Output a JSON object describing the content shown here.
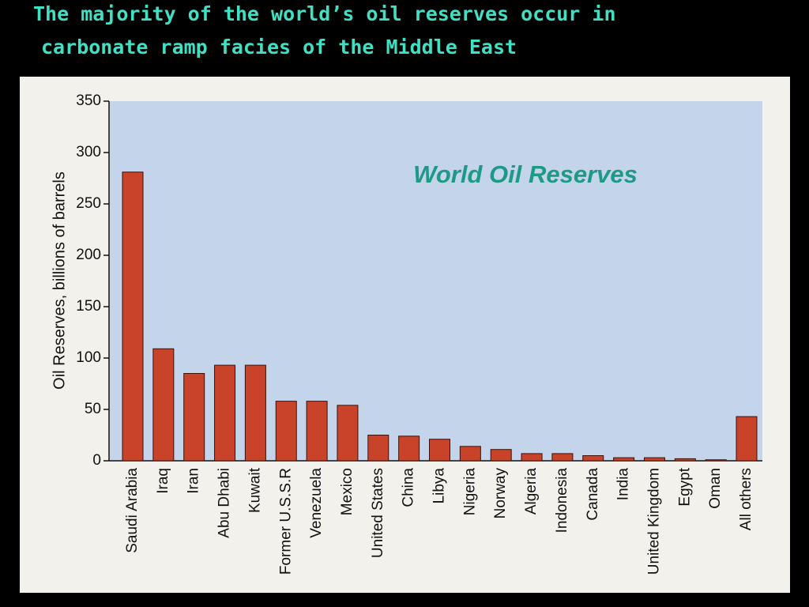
{
  "heading": [
    "The majority of the world’s oil reserves occur in",
    "carbonate ramp facies of the Middle East"
  ],
  "chart_data": {
    "type": "bar",
    "title": "World Oil Reserves",
    "y_label": "Oil Reserves, billions of barrels",
    "categories": [
      "Saudi Arabia",
      "Iraq",
      "Iran",
      "Abu Dhabi",
      "Kuwait",
      "Former U.S.S.R",
      "Venezuela",
      "Mexico",
      "United States",
      "China",
      "Libya",
      "Nigeria",
      "Norway",
      "Algeria",
      "Indonesia",
      "Canada",
      "India",
      "United Kingdom",
      "Egypt",
      "Oman",
      "All others"
    ],
    "values": [
      281,
      109,
      85,
      93,
      93,
      58,
      58,
      54,
      25,
      24,
      21,
      14,
      11,
      7,
      7,
      5,
      3,
      3,
      2,
      1,
      43
    ],
    "color": "#c9432b",
    "ylim": [
      0,
      350
    ],
    "yticks": [
      0,
      50,
      100,
      150,
      200,
      250,
      300,
      350
    ]
  }
}
